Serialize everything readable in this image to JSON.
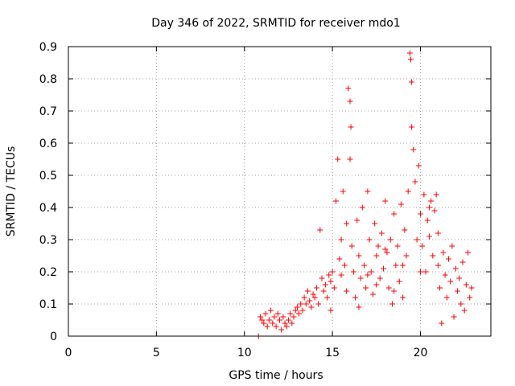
{
  "chart_data": {
    "type": "scatter",
    "title": "Day 346 of 2022, SRMTID for receiver mdo1",
    "xlabel": "GPS time / hours",
    "ylabel": "SRMTID / TECUs",
    "xlim": [
      0,
      24
    ],
    "ylim": [
      0,
      0.9
    ],
    "xticks": [
      0,
      5,
      10,
      15,
      20
    ],
    "xtick_labels": [
      "0",
      "5",
      "10",
      "15",
      "20"
    ],
    "yticks": [
      0,
      0.1,
      0.2,
      0.3,
      0.4,
      0.5,
      0.6,
      0.7,
      0.8,
      0.9
    ],
    "ytick_labels": [
      "0",
      "0.1",
      "0.2",
      "0.3",
      "0.4",
      "0.5",
      "0.6",
      "0.7",
      "0.8",
      "0.9"
    ],
    "grid": true,
    "marker": "+",
    "color": "#ff0000",
    "series": [
      {
        "name": "SRMTID",
        "points": [
          [
            10.8,
            0.0
          ],
          [
            10.9,
            0.06
          ],
          [
            11.0,
            0.05
          ],
          [
            11.1,
            0.04
          ],
          [
            11.2,
            0.07
          ],
          [
            11.3,
            0.03
          ],
          [
            11.4,
            0.05
          ],
          [
            11.5,
            0.08
          ],
          [
            11.6,
            0.04
          ],
          [
            11.7,
            0.06
          ],
          [
            11.8,
            0.03
          ],
          [
            11.9,
            0.07
          ],
          [
            12.0,
            0.05
          ],
          [
            12.1,
            0.02
          ],
          [
            12.2,
            0.06
          ],
          [
            12.3,
            0.04
          ],
          [
            12.4,
            0.03
          ],
          [
            12.5,
            0.05
          ],
          [
            12.6,
            0.07
          ],
          [
            12.7,
            0.04
          ],
          [
            12.8,
            0.06
          ],
          [
            12.9,
            0.08
          ],
          [
            13.0,
            0.09
          ],
          [
            13.1,
            0.07
          ],
          [
            13.2,
            0.1
          ],
          [
            13.3,
            0.08
          ],
          [
            13.4,
            0.12
          ],
          [
            13.5,
            0.1
          ],
          [
            13.6,
            0.14
          ],
          [
            13.7,
            0.11
          ],
          [
            13.8,
            0.09
          ],
          [
            13.9,
            0.13
          ],
          [
            14.0,
            0.12
          ],
          [
            14.1,
            0.15
          ],
          [
            14.2,
            0.1
          ],
          [
            14.3,
            0.33
          ],
          [
            14.4,
            0.18
          ],
          [
            14.5,
            0.14
          ],
          [
            14.6,
            0.16
          ],
          [
            14.7,
            0.12
          ],
          [
            14.8,
            0.19
          ],
          [
            14.9,
            0.17
          ],
          [
            15.0,
            0.2
          ],
          [
            15.1,
            0.15
          ],
          [
            15.2,
            0.42
          ],
          [
            15.3,
            0.55
          ],
          [
            15.4,
            0.24
          ],
          [
            15.5,
            0.3
          ],
          [
            15.6,
            0.45
          ],
          [
            15.7,
            0.22
          ],
          [
            15.8,
            0.35
          ],
          [
            15.9,
            0.77
          ],
          [
            16.0,
            0.73
          ],
          [
            16.05,
            0.65
          ],
          [
            16.0,
            0.55
          ],
          [
            16.1,
            0.28
          ],
          [
            16.2,
            0.2
          ],
          [
            16.3,
            0.12
          ],
          [
            16.4,
            0.36
          ],
          [
            16.5,
            0.25
          ],
          [
            16.6,
            0.18
          ],
          [
            16.7,
            0.4
          ],
          [
            16.8,
            0.22
          ],
          [
            16.9,
            0.15
          ],
          [
            17.0,
            0.45
          ],
          [
            17.1,
            0.3
          ],
          [
            17.2,
            0.2
          ],
          [
            17.3,
            0.13
          ],
          [
            17.4,
            0.35
          ],
          [
            17.5,
            0.25
          ],
          [
            17.6,
            0.28
          ],
          [
            17.7,
            0.18
          ],
          [
            17.8,
            0.32
          ],
          [
            17.9,
            0.21
          ],
          [
            18.0,
            0.42
          ],
          [
            18.1,
            0.26
          ],
          [
            18.2,
            0.15
          ],
          [
            18.3,
            0.3
          ],
          [
            18.4,
            0.1
          ],
          [
            18.5,
            0.38
          ],
          [
            18.6,
            0.22
          ],
          [
            18.7,
            0.28
          ],
          [
            18.8,
            0.17
          ],
          [
            18.9,
            0.41
          ],
          [
            19.0,
            0.12
          ],
          [
            19.1,
            0.33
          ],
          [
            19.2,
            0.25
          ],
          [
            19.3,
            0.45
          ],
          [
            19.4,
            0.88
          ],
          [
            19.45,
            0.86
          ],
          [
            19.5,
            0.79
          ],
          [
            19.5,
            0.65
          ],
          [
            19.6,
            0.58
          ],
          [
            19.7,
            0.48
          ],
          [
            19.8,
            0.3
          ],
          [
            19.9,
            0.53
          ],
          [
            20.0,
            0.38
          ],
          [
            20.1,
            0.28
          ],
          [
            20.2,
            0.44
          ],
          [
            20.3,
            0.2
          ],
          [
            20.4,
            0.36
          ],
          [
            20.5,
            0.31
          ],
          [
            20.6,
            0.42
          ],
          [
            20.7,
            0.25
          ],
          [
            20.8,
            0.39
          ],
          [
            20.9,
            0.44
          ],
          [
            21.0,
            0.22
          ],
          [
            21.1,
            0.15
          ],
          [
            21.2,
            0.04
          ],
          [
            21.3,
            0.26
          ],
          [
            21.4,
            0.19
          ],
          [
            21.5,
            0.12
          ],
          [
            21.6,
            0.24
          ],
          [
            21.7,
            0.17
          ],
          [
            21.8,
            0.28
          ],
          [
            21.9,
            0.06
          ],
          [
            22.0,
            0.21
          ],
          [
            22.1,
            0.14
          ],
          [
            22.2,
            0.18
          ],
          [
            22.3,
            0.1
          ],
          [
            22.4,
            0.23
          ],
          [
            22.5,
            0.08
          ],
          [
            22.6,
            0.16
          ],
          [
            22.7,
            0.26
          ],
          [
            22.8,
            0.12
          ],
          [
            22.9,
            0.15
          ],
          [
            15.5,
            0.19
          ],
          [
            16.5,
            0.09
          ],
          [
            17.5,
            0.16
          ],
          [
            18.5,
            0.14
          ],
          [
            19.0,
            0.22
          ],
          [
            20.5,
            0.4
          ],
          [
            21.0,
            0.32
          ],
          [
            20.0,
            0.2
          ],
          [
            18.0,
            0.27
          ],
          [
            17.0,
            0.19
          ],
          [
            14.9,
            0.08
          ],
          [
            15.8,
            0.14
          ]
        ]
      }
    ]
  }
}
